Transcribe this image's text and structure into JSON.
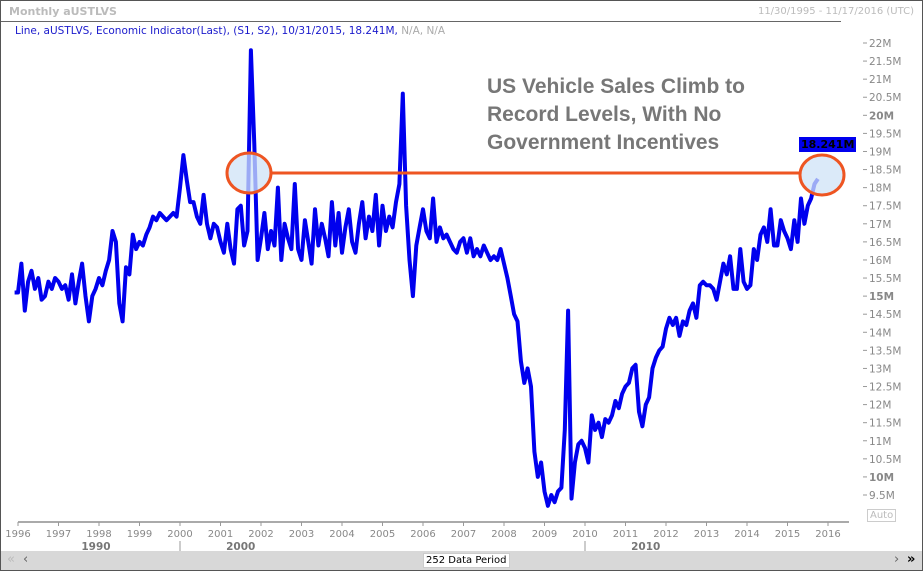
{
  "header": {
    "title": "Monthly aUSTLVS",
    "date_range": "11/30/1995 - 11/17/2016 (UTC)"
  },
  "legend": {
    "text": "Line, aUSTLVS, Economic Indicator(Last), (S1, S2),  10/31/2015,  18.241M,",
    "na": "N/A, N/A"
  },
  "annotation": {
    "lines": [
      "US Vehicle Sales Climb to",
      "Record Levels, With No",
      "Government Incentives"
    ]
  },
  "current_value_label": "18.241M",
  "scroll": {
    "period_label": "252 Data Period",
    "auto_label": "Auto",
    "left_icons": [
      "double-chevron-left",
      "chevron-left"
    ],
    "right_icons": [
      "chevron-right",
      "double-chevron-right"
    ]
  },
  "colors": {
    "line": "#0000ee",
    "highlight": "#ee5522",
    "ellipse_fill": "#cfe3f7"
  },
  "chart_data": {
    "type": "line",
    "title": "Monthly aUSTLVS",
    "ylabel": "",
    "xlabel": "",
    "ylim": [
      9.5,
      22
    ],
    "xlim": [
      1995.84,
      2016.25
    ],
    "y_ticks": [
      "22M",
      "21.5M",
      "21M",
      "20.5M",
      "20M",
      "19.5M",
      "19M",
      "18.5M",
      "18M",
      "17.5M",
      "17M",
      "16.5M",
      "16M",
      "15.5M",
      "15M",
      "14.5M",
      "14M",
      "13.5M",
      "13M",
      "12.5M",
      "12M",
      "11.5M",
      "11M",
      "10.5M",
      "10M",
      "9.5M"
    ],
    "x_ticks": [
      "1996",
      "1997",
      "1998",
      "1999",
      "2000",
      "2001",
      "2002",
      "2003",
      "2004",
      "2005",
      "2006",
      "2007",
      "2008",
      "2009",
      "2010",
      "2011",
      "2012",
      "2013",
      "2014",
      "2015",
      "2016"
    ],
    "decades": [
      "1990",
      "2000",
      "2010"
    ],
    "start": "1995-12",
    "series": [
      {
        "name": "aUSTLVS",
        "unit": "M",
        "values": [
          15.1,
          15.1,
          15.9,
          14.6,
          15.4,
          15.7,
          15.2,
          15.5,
          14.9,
          15.0,
          15.4,
          15.2,
          15.5,
          15.4,
          15.2,
          15.3,
          14.9,
          15.6,
          14.8,
          15.4,
          15.9,
          15.0,
          14.3,
          15.0,
          15.2,
          15.5,
          15.3,
          15.7,
          16.0,
          16.8,
          16.5,
          14.8,
          14.3,
          15.8,
          15.6,
          16.7,
          16.3,
          16.5,
          16.4,
          16.7,
          16.9,
          17.2,
          17.1,
          17.3,
          17.2,
          17.1,
          17.2,
          17.3,
          17.2,
          18.0,
          18.9,
          18.2,
          17.6,
          17.6,
          17.2,
          17.0,
          17.8,
          17.0,
          16.6,
          17.0,
          16.9,
          16.5,
          16.2,
          17.0,
          16.3,
          15.9,
          17.4,
          17.5,
          16.4,
          16.8,
          21.8,
          19.2,
          16.0,
          16.6,
          17.3,
          16.3,
          16.8,
          16.4,
          18.0,
          16.0,
          17.0,
          16.6,
          16.3,
          18.1,
          16.3,
          16.0,
          17.1,
          16.5,
          15.9,
          17.4,
          16.4,
          17.0,
          16.6,
          16.1,
          17.6,
          16.4,
          17.3,
          16.2,
          16.9,
          17.4,
          16.5,
          16.2,
          17.0,
          17.6,
          16.6,
          17.2,
          16.8,
          17.8,
          16.4,
          17.5,
          16.8,
          17.2,
          16.9,
          17.6,
          18.1,
          20.6,
          17.5,
          16.0,
          15.0,
          16.4,
          16.9,
          17.4,
          16.8,
          16.6,
          17.7,
          16.5,
          16.9,
          16.6,
          16.7,
          16.5,
          16.3,
          16.2,
          16.5,
          16.6,
          16.2,
          16.6,
          16.1,
          16.3,
          16.1,
          16.4,
          16.2,
          16.0,
          16.1,
          16.0,
          16.3,
          15.9,
          15.5,
          15.0,
          14.5,
          14.3,
          13.2,
          12.6,
          13.0,
          12.5,
          10.7,
          10.0,
          10.4,
          9.6,
          9.2,
          9.5,
          9.3,
          9.6,
          9.7,
          11.3,
          14.6,
          9.4,
          10.4,
          10.9,
          11.0,
          10.8,
          10.4,
          11.7,
          11.3,
          11.5,
          11.1,
          11.6,
          11.5,
          11.7,
          12.1,
          11.9,
          12.3,
          12.5,
          12.6,
          13.0,
          13.1,
          11.8,
          11.4,
          12.0,
          12.2,
          13.0,
          13.3,
          13.5,
          13.6,
          14.1,
          14.4,
          14.2,
          14.4,
          13.9,
          14.3,
          14.2,
          14.6,
          14.8,
          14.4,
          15.3,
          15.4,
          15.3,
          15.3,
          15.2,
          14.9,
          15.4,
          15.9,
          15.6,
          16.1,
          15.2,
          15.2,
          16.3,
          15.4,
          15.2,
          15.3,
          16.3,
          16.0,
          16.7,
          16.9,
          16.5,
          17.4,
          16.4,
          16.4,
          17.1,
          16.8,
          16.6,
          16.3,
          17.1,
          16.5,
          17.7,
          17.0,
          17.5,
          17.7,
          18.1,
          18.241
        ]
      }
    ]
  }
}
